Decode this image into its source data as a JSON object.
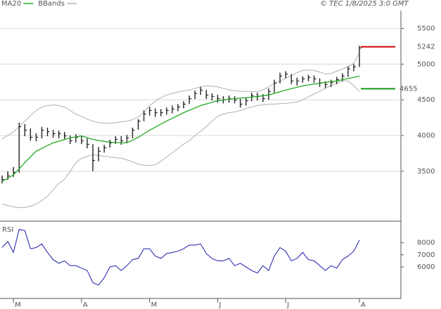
{
  "chart_data": [
    {
      "type": "ohlc",
      "source": "© TEC 1/8/2025 3:0 GMT",
      "ylim": [
        2800,
        5750
      ],
      "yticks": [
        3500,
        4000,
        4500,
        5000,
        5500
      ],
      "grid": true,
      "bar_color": "#222222",
      "high": [
        3440,
        3500,
        3560,
        4180,
        4160,
        4100,
        4030,
        4120,
        4110,
        4080,
        4070,
        4050,
        4000,
        4020,
        3990,
        3960,
        3880,
        3840,
        3870,
        3940,
        3990,
        3990,
        4010,
        4110,
        4230,
        4350,
        4400,
        4380,
        4370,
        4390,
        4420,
        4440,
        4480,
        4560,
        4630,
        4680,
        4640,
        4590,
        4570,
        4550,
        4560,
        4550,
        4510,
        4530,
        4600,
        4600,
        4580,
        4660,
        4780,
        4880,
        4900,
        4860,
        4810,
        4830,
        4850,
        4840,
        4800,
        4760,
        4780,
        4820,
        4870,
        4970,
        5000,
        5256
      ],
      "low": [
        3330,
        3380,
        3420,
        3480,
        3990,
        3930,
        3920,
        3960,
        3990,
        3970,
        3960,
        3940,
        3880,
        3900,
        3880,
        3820,
        3500,
        3640,
        3760,
        3830,
        3880,
        3870,
        3900,
        3960,
        4080,
        4200,
        4280,
        4260,
        4270,
        4290,
        4310,
        4340,
        4380,
        4440,
        4510,
        4570,
        4510,
        4490,
        4460,
        4450,
        4460,
        4450,
        4390,
        4420,
        4480,
        4490,
        4470,
        4500,
        4600,
        4730,
        4800,
        4720,
        4700,
        4740,
        4760,
        4740,
        4680,
        4660,
        4680,
        4720,
        4760,
        4820,
        4900,
        4960
      ],
      "close": [
        3385,
        3434,
        3483,
        4123,
        4074,
        3975,
        3975,
        4074,
        4054,
        4025,
        4025,
        3995,
        3926,
        3975,
        3926,
        3877,
        3651,
        3779,
        3828,
        3897,
        3946,
        3926,
        3966,
        4074,
        4202,
        4301,
        4350,
        4320,
        4320,
        4350,
        4370,
        4399,
        4439,
        4517,
        4586,
        4636,
        4567,
        4547,
        4517,
        4498,
        4517,
        4498,
        4439,
        4488,
        4557,
        4547,
        4517,
        4616,
        4734,
        4833,
        4862,
        4764,
        4764,
        4793,
        4813,
        4793,
        4734,
        4714,
        4744,
        4783,
        4833,
        4931,
        4961,
        5227
      ],
      "series": [
        {
          "name": "MA20",
          "color": "#22aa22",
          "values": [
            3355,
            3400,
            3450,
            3532,
            3620,
            3700,
            3779,
            3820,
            3860,
            3897,
            3920,
            3945,
            3966,
            3980,
            3995,
            3970,
            3946,
            3930,
            3918,
            3907,
            3902,
            3897,
            3897,
            3935,
            3975,
            4024,
            4074,
            4116,
            4160,
            4202,
            4241,
            4280,
            4320,
            4353,
            4386,
            4419,
            4442,
            4465,
            4488,
            4498,
            4507,
            4517,
            4524,
            4530,
            4537,
            4547,
            4557,
            4567,
            4590,
            4613,
            4636,
            4656,
            4676,
            4695,
            4708,
            4721,
            4734,
            4744,
            4754,
            4764,
            4781,
            4798,
            4815,
            4833
          ]
        },
        {
          "name": "BBands",
          "color": "#b0b0b0",
          "upper": [
            3950,
            4000,
            4050,
            4123,
            4200,
            4280,
            4350,
            4400,
            4419,
            4430,
            4419,
            4400,
            4350,
            4300,
            4271,
            4230,
            4200,
            4180,
            4173,
            4173,
            4180,
            4190,
            4200,
            4222,
            4260,
            4320,
            4419,
            4480,
            4530,
            4567,
            4590,
            4610,
            4625,
            4636,
            4660,
            4680,
            4695,
            4690,
            4680,
            4660,
            4640,
            4625,
            4620,
            4616,
            4616,
            4616,
            4640,
            4680,
            4730,
            4764,
            4800,
            4840,
            4880,
            4911,
            4915,
            4911,
            4890,
            4862,
            4870,
            4900,
            4930,
            4960,
            5010,
            5158
          ],
          "lower": [
            3040,
            3020,
            3000,
            2991,
            2991,
            3010,
            3040,
            3089,
            3150,
            3240,
            3330,
            3385,
            3500,
            3620,
            3680,
            3710,
            3729,
            3720,
            3710,
            3700,
            3690,
            3680,
            3660,
            3630,
            3600,
            3582,
            3582,
            3590,
            3640,
            3700,
            3760,
            3820,
            3880,
            3926,
            4000,
            4060,
            4123,
            4200,
            4271,
            4300,
            4320,
            4330,
            4350,
            4380,
            4400,
            4419,
            4430,
            4439,
            4439,
            4445,
            4450,
            4460,
            4468,
            4500,
            4540,
            4580,
            4620,
            4665,
            4700,
            4730,
            4764,
            4764,
            4700,
            4616
          ]
        }
      ],
      "reference_lines": [
        {
          "value": 5242,
          "color": "#cc0000"
        },
        {
          "value": 4655,
          "color": "#119911"
        }
      ]
    },
    {
      "type": "line",
      "title": "RSI",
      "ylim": [
        38,
        96
      ],
      "yticks": [
        {
          "value": 60,
          "label": "6000"
        },
        {
          "value": 70,
          "label": "7000"
        },
        {
          "value": 80,
          "label": "8000"
        }
      ],
      "categories": [
        null,
        null,
        "M",
        null,
        null,
        null,
        null,
        null,
        null,
        null,
        null,
        null,
        null,
        null,
        "A",
        null,
        null,
        null,
        null,
        null,
        null,
        null,
        null,
        null,
        null,
        null,
        "M",
        null,
        null,
        null,
        null,
        null,
        null,
        null,
        null,
        null,
        null,
        null,
        "J",
        null,
        null,
        null,
        null,
        null,
        null,
        null,
        null,
        null,
        null,
        null,
        "J",
        null,
        null,
        null,
        null,
        null,
        null,
        null,
        null,
        null,
        null,
        null,
        null,
        "A"
      ],
      "series": [
        {
          "name": "RSI",
          "color": "#1a1aaa",
          "values": [
            76,
            81,
            72,
            91,
            90,
            75,
            76,
            79,
            72,
            66,
            63,
            65,
            61,
            61,
            59,
            57,
            47,
            45,
            51,
            60,
            61,
            57,
            61,
            66,
            67,
            75,
            75,
            69,
            67,
            71,
            72,
            73,
            75,
            78,
            78,
            79,
            71,
            67,
            65,
            65,
            67,
            61,
            63,
            60,
            57,
            55,
            61,
            57,
            69,
            76,
            73,
            65,
            67,
            72,
            66,
            65,
            61,
            57,
            61,
            59,
            66,
            69,
            73,
            82
          ]
        }
      ]
    }
  ]
}
